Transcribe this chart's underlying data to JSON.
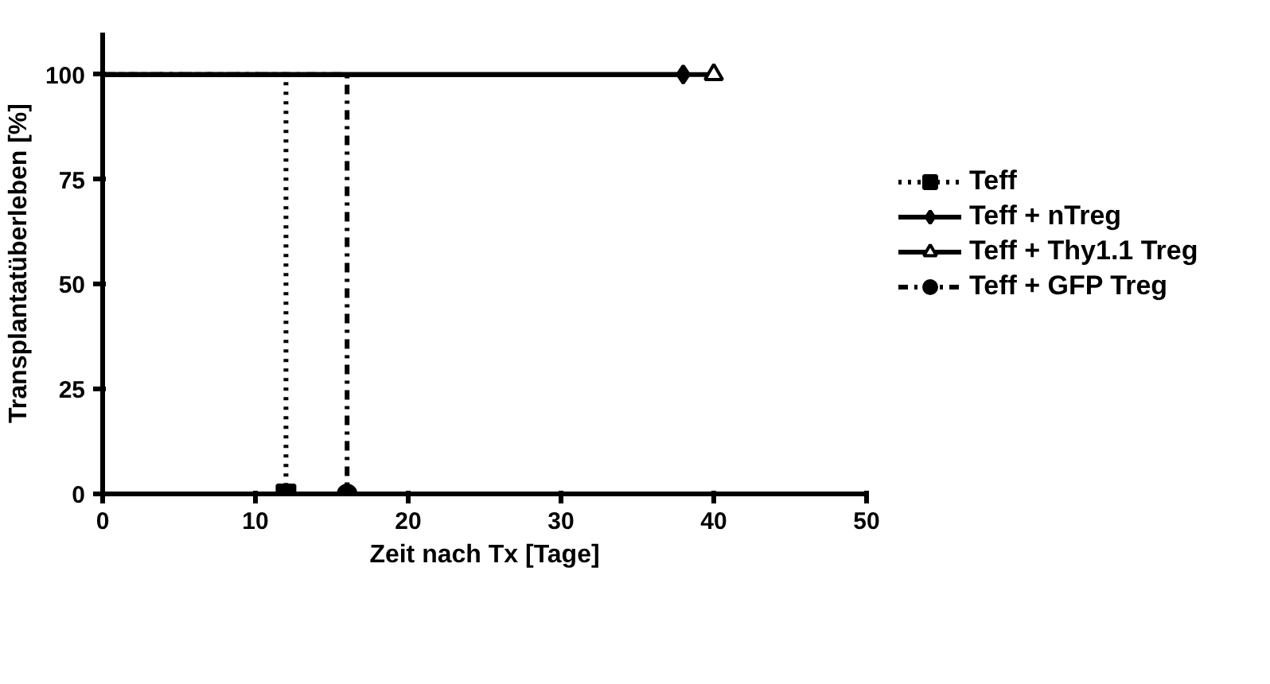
{
  "chart_data": {
    "type": "step",
    "xlabel": "Zeit nach Tx [Tage]",
    "ylabel": "Transplantatüberleben [%]",
    "xlim": [
      0,
      50
    ],
    "xticks": [
      0,
      10,
      20,
      30,
      40,
      50
    ],
    "ylim": [
      0,
      110
    ],
    "yticks": [
      0,
      25,
      50,
      75,
      100
    ],
    "grid": false,
    "legend": "right",
    "series": [
      {
        "name": "Teff",
        "color": "#000000",
        "x": [
          0,
          12
        ],
        "values": [
          100,
          0
        ],
        "line_style": "dotted",
        "marker": "square"
      },
      {
        "name": "Teff + nTreg",
        "color": "#000000",
        "x": [
          0,
          38
        ],
        "values": [
          100,
          100
        ],
        "line_style": "solid",
        "marker": "diamond"
      },
      {
        "name": "Teff + Thy1.1 Treg",
        "color": "#000000",
        "x": [
          0,
          40
        ],
        "values": [
          100,
          100
        ],
        "line_style": "solid",
        "marker": "triangle"
      },
      {
        "name": "Teff + GFP Treg",
        "color": "#000000",
        "x": [
          0,
          16
        ],
        "values": [
          100,
          0
        ],
        "line_style": "dashed",
        "marker": "circle"
      }
    ]
  }
}
